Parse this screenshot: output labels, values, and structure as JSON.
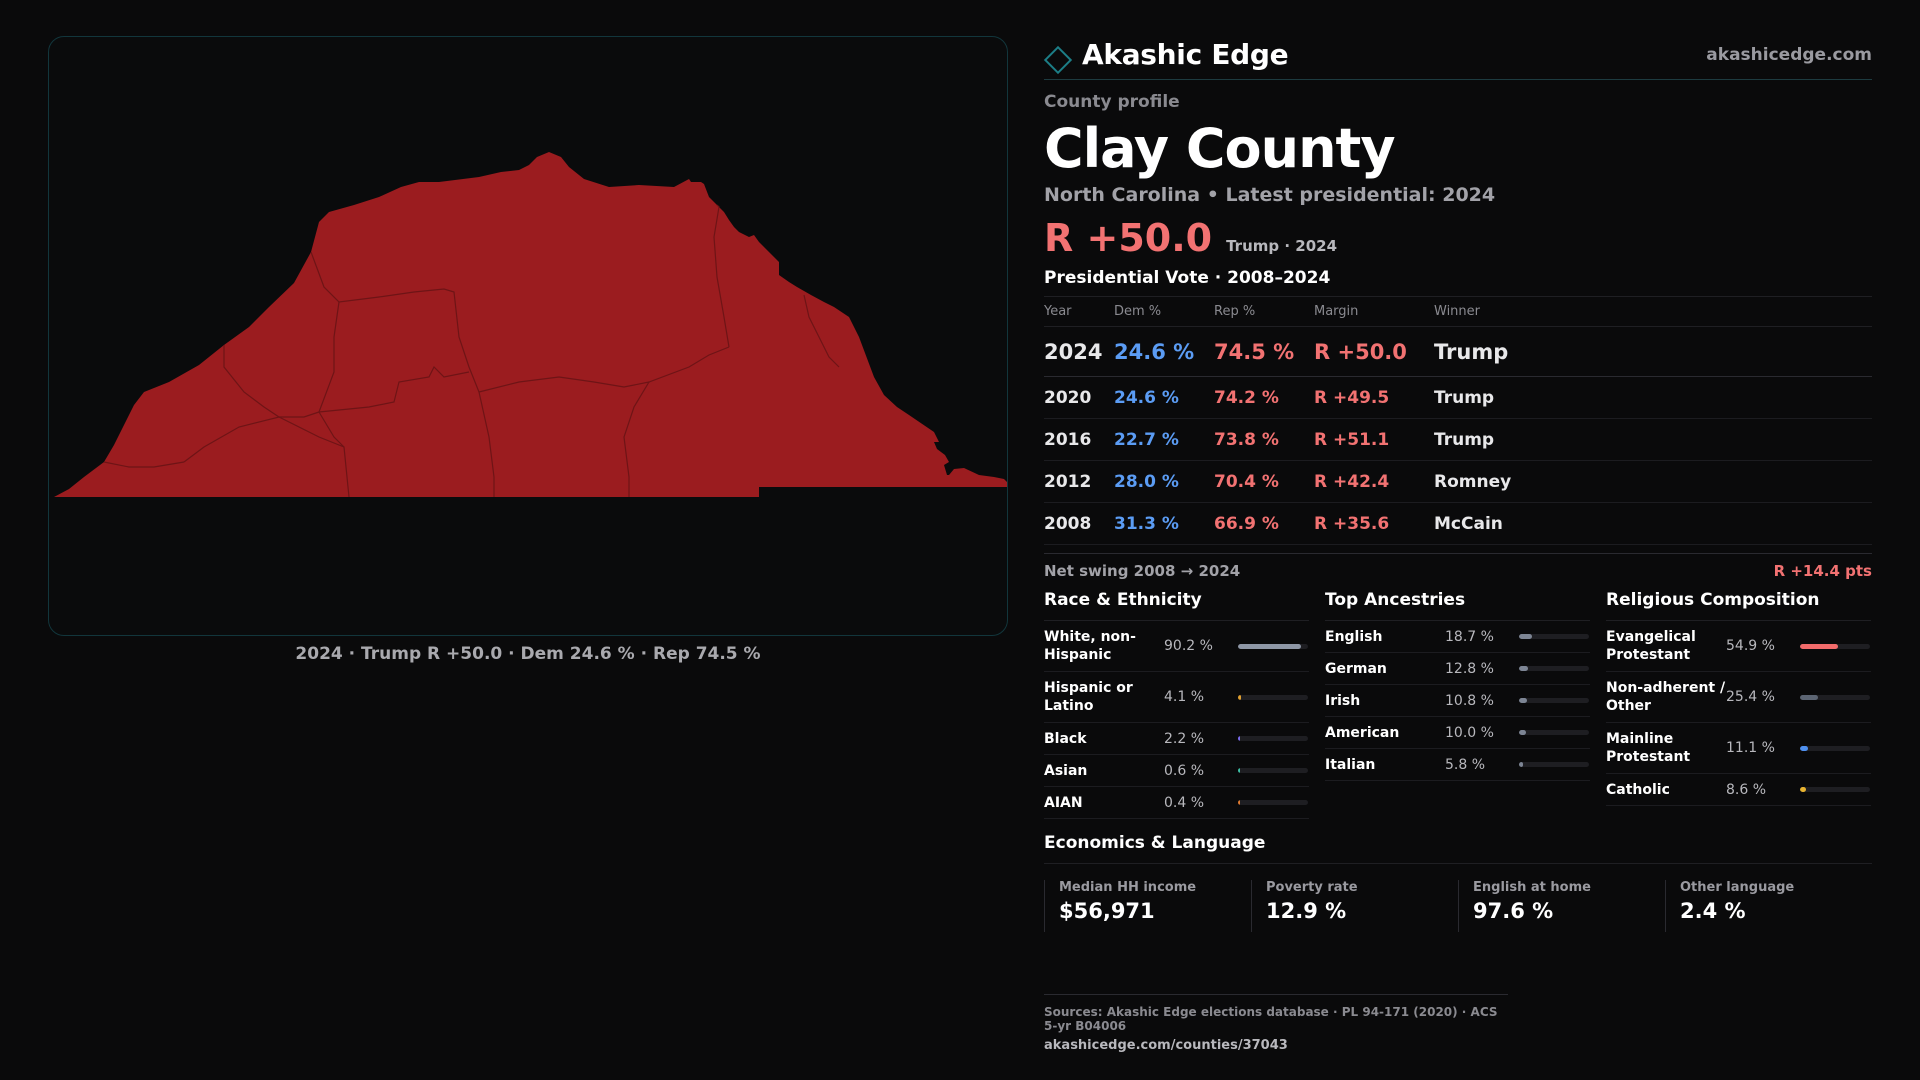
{
  "brand": {
    "name": "Akashic Edge",
    "url": "akashicedge.com"
  },
  "map": {
    "caption": "2024 · Trump R +50.0 · Dem 24.6 % · Rep 74.5 %",
    "fill_color": "#9b1c1f",
    "border_color": "#6e1416"
  },
  "profile": {
    "eyebrow": "County profile",
    "title": "Clay County",
    "subtitle": "North Carolina • Latest presidential: 2024",
    "headline_margin": "R +50.0",
    "headline_note": "Trump · 2024"
  },
  "presidential": {
    "title": "Presidential Vote · 2008–2024",
    "headers": {
      "year": "Year",
      "dem": "Dem %",
      "rep": "Rep %",
      "margin": "Margin",
      "winner": "Winner"
    },
    "rows": [
      {
        "year": "2024",
        "dem": "24.6 %",
        "rep": "74.5 %",
        "margin": "R +50.0",
        "winner": "Trump"
      },
      {
        "year": "2020",
        "dem": "24.6 %",
        "rep": "74.2 %",
        "margin": "R +49.5",
        "winner": "Trump"
      },
      {
        "year": "2016",
        "dem": "22.7 %",
        "rep": "73.8 %",
        "margin": "R +51.1",
        "winner": "Trump"
      },
      {
        "year": "2012",
        "dem": "28.0 %",
        "rep": "70.4 %",
        "margin": "R +42.4",
        "winner": "Romney"
      },
      {
        "year": "2008",
        "dem": "31.3 %",
        "rep": "66.9 %",
        "margin": "R +35.6",
        "winner": "McCain"
      }
    ],
    "swing_label": "Net swing 2008 → 2024",
    "swing_value": "R +14.4 pts"
  },
  "race": {
    "title": "Race & Ethnicity",
    "items": [
      {
        "label": "White, non-Hispanic",
        "value": "90.2 %",
        "pct": 90.2,
        "color": "#8e97a6"
      },
      {
        "label": "Hispanic or Latino",
        "value": "4.1 %",
        "pct": 4.1,
        "color": "#e0a030"
      },
      {
        "label": "Black",
        "value": "2.2 %",
        "pct": 2.2,
        "color": "#7b6cf0"
      },
      {
        "label": "Asian",
        "value": "0.6 %",
        "pct": 0.6,
        "color": "#3dbfa5"
      },
      {
        "label": "AIAN",
        "value": "0.4 %",
        "pct": 0.4,
        "color": "#e07a30"
      }
    ]
  },
  "ancestry": {
    "title": "Top Ancestries",
    "items": [
      {
        "label": "English",
        "value": "18.7 %",
        "pct": 18.7,
        "color": "#7d8594"
      },
      {
        "label": "German",
        "value": "12.8 %",
        "pct": 12.8,
        "color": "#7d8594"
      },
      {
        "label": "Irish",
        "value": "10.8 %",
        "pct": 10.8,
        "color": "#7d8594"
      },
      {
        "label": "American",
        "value": "10.0 %",
        "pct": 10.0,
        "color": "#7d8594"
      },
      {
        "label": "Italian",
        "value": "5.8 %",
        "pct": 5.8,
        "color": "#7d8594"
      }
    ]
  },
  "religion": {
    "title": "Religious Composition",
    "items": [
      {
        "label": "Evangelical Protestant",
        "value": "54.9 %",
        "pct": 54.9,
        "color": "#f26b6b"
      },
      {
        "label": "Non-adherent / Other",
        "value": "25.4 %",
        "pct": 25.4,
        "color": "#5c6573"
      },
      {
        "label": "Mainline Protestant",
        "value": "11.1 %",
        "pct": 11.1,
        "color": "#4f90ef"
      },
      {
        "label": "Catholic",
        "value": "8.6 %",
        "pct": 8.6,
        "color": "#e8b330"
      }
    ]
  },
  "economics": {
    "title": "Economics & Language",
    "stats": [
      {
        "label": "Median HH income",
        "value": "$56,971"
      },
      {
        "label": "Poverty rate",
        "value": "12.9 %"
      },
      {
        "label": "English at home",
        "value": "97.6 %"
      },
      {
        "label": "Other language",
        "value": "2.4 %"
      }
    ]
  },
  "sources": {
    "line1": "Sources: Akashic Edge elections database · PL 94-171 (2020) · ACS 5-yr B04006",
    "line2": "akashicedge.com/counties/37043"
  }
}
